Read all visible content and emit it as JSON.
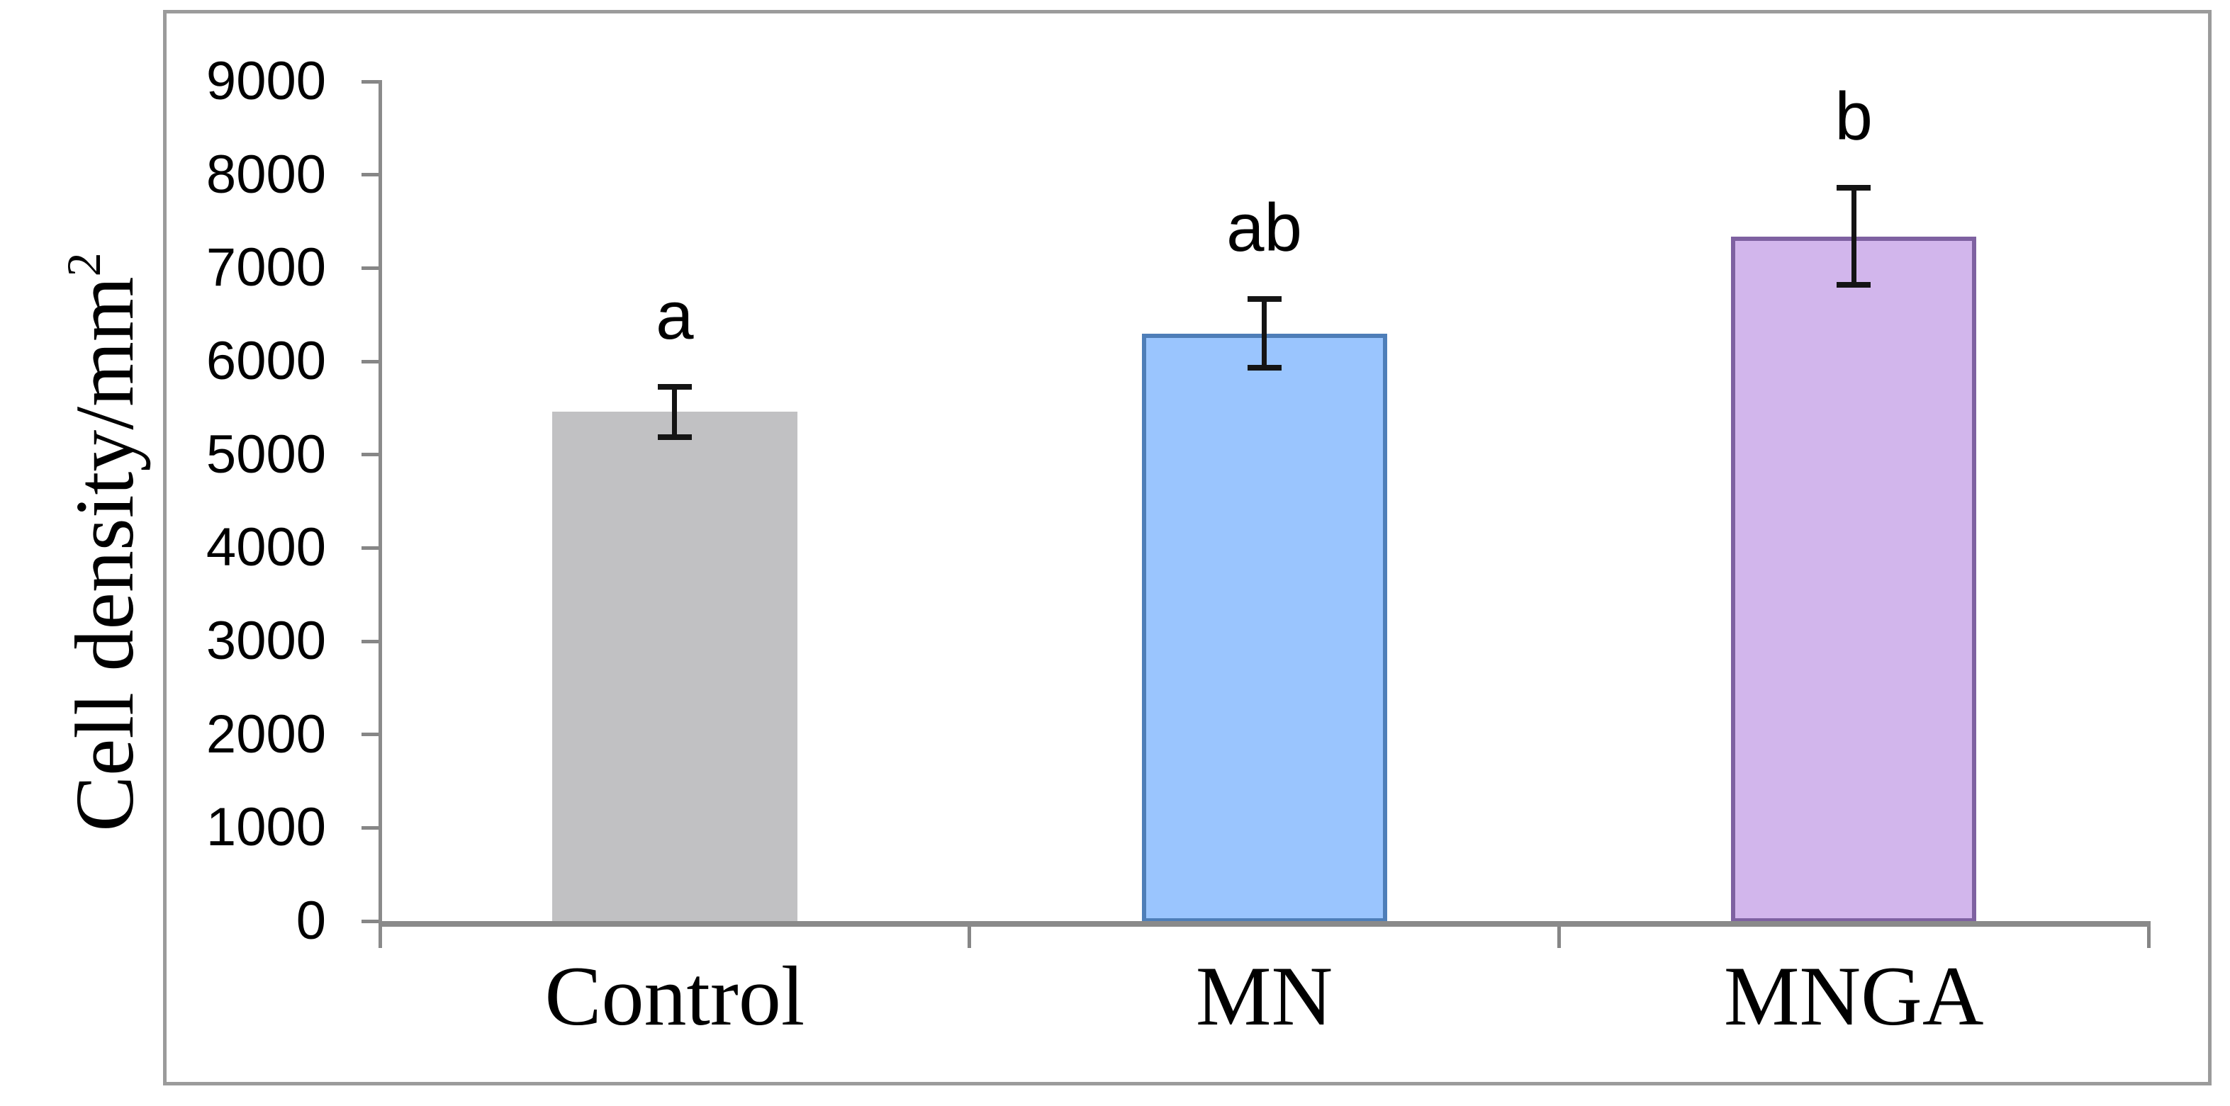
{
  "figure": {
    "border_color": "#9b9b9b",
    "background": "#ffffff",
    "y_axis_title": {
      "main": "Cell density/mm",
      "superscript": "2"
    }
  },
  "chart_data": {
    "type": "bar",
    "title": "",
    "xlabel": "",
    "ylabel": "Cell density/mm²",
    "categories": [
      "Control",
      "MN",
      "MNGA"
    ],
    "values": [
      5460,
      6300,
      7340
    ],
    "error_bars": [
      270,
      365,
      520
    ],
    "significance_letters": [
      "a",
      "ab",
      "b"
    ],
    "ylim": [
      0,
      9000
    ],
    "y_tick_step": 1000,
    "y_tick_labels": [
      "0",
      "1000",
      "2000",
      "3000",
      "4000",
      "5000",
      "6000",
      "7000",
      "8000",
      "9000"
    ],
    "grid": false,
    "legend": "none",
    "bar_colors": [
      {
        "fill": "#c1c1c3",
        "border": "none"
      },
      {
        "fill": "#9ac5fe",
        "border": "#4e7eb8"
      },
      {
        "fill": "#d2b6ec",
        "border": "#7e61a1"
      }
    ],
    "axis_color": "#8a8a8a",
    "tick_color": "#868686",
    "error_bar_color": "#141414",
    "text_color": "#000000"
  }
}
